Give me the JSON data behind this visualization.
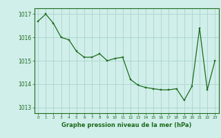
{
  "x": [
    0,
    1,
    2,
    3,
    4,
    5,
    6,
    7,
    8,
    9,
    10,
    11,
    12,
    13,
    14,
    15,
    16,
    17,
    18,
    19,
    20,
    21,
    22,
    23
  ],
  "y": [
    1016.7,
    1017.0,
    1016.6,
    1016.0,
    1015.9,
    1015.4,
    1015.15,
    1015.15,
    1015.3,
    1015.0,
    1015.1,
    1015.15,
    1014.2,
    1013.95,
    1013.85,
    1013.8,
    1013.75,
    1013.75,
    1013.8,
    1013.3,
    1013.9,
    1016.4,
    1013.75,
    1015.0
  ],
  "line_color": "#1a6b1a",
  "marker_color": "#1a6b1a",
  "bg_color": "#d0eeea",
  "grid_color": "#a8d4cc",
  "axis_color": "#1a6b1a",
  "tick_color": "#1a6b1a",
  "label_color": "#1a6b1a",
  "ylim": [
    1012.75,
    1017.25
  ],
  "yticks": [
    1013,
    1014,
    1015,
    1016,
    1017
  ],
  "xticks": [
    0,
    1,
    2,
    3,
    4,
    5,
    6,
    7,
    8,
    9,
    10,
    11,
    12,
    13,
    14,
    15,
    16,
    17,
    18,
    19,
    20,
    21,
    22,
    23
  ],
  "xlabel": "Graphe pression niveau de la mer (hPa)"
}
